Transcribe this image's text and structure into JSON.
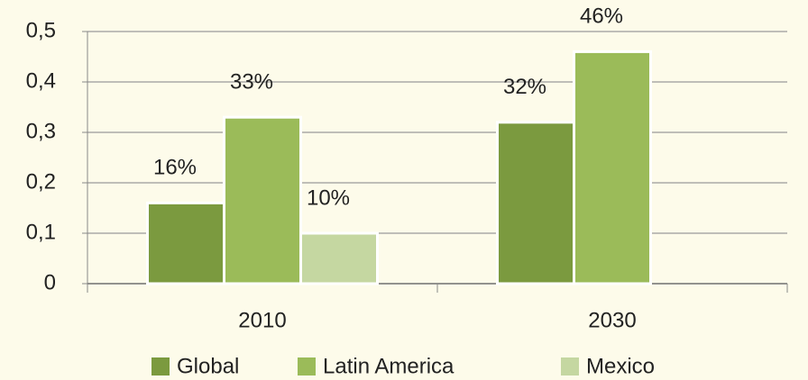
{
  "chart_data": {
    "type": "bar",
    "categories": [
      "2010",
      "2030"
    ],
    "series": [
      {
        "name": "Global",
        "color": "#7b9a3f",
        "values": [
          0.16,
          0.32
        ],
        "value_labels": [
          "16%",
          "32%"
        ]
      },
      {
        "name": "Latin America",
        "color": "#9bbb59",
        "values": [
          0.33,
          0.46
        ],
        "value_labels": [
          "33%",
          "46%"
        ]
      },
      {
        "name": "Mexico",
        "color": "#c5d7a1",
        "values": [
          0.1,
          null
        ],
        "value_labels": [
          "10%",
          null
        ]
      }
    ],
    "ylim": [
      0,
      0.5
    ],
    "yticks": [
      0,
      {
        "value": 0.1,
        "label": "0,1"
      },
      {
        "value": 0.2,
        "label": "0,2"
      },
      {
        "value": 0.3,
        "label": "0,3"
      },
      {
        "value": 0.4,
        "label": "0,4"
      },
      {
        "value": 0.5,
        "label": "0,5"
      }
    ],
    "grid": true,
    "legend": "bottom"
  }
}
